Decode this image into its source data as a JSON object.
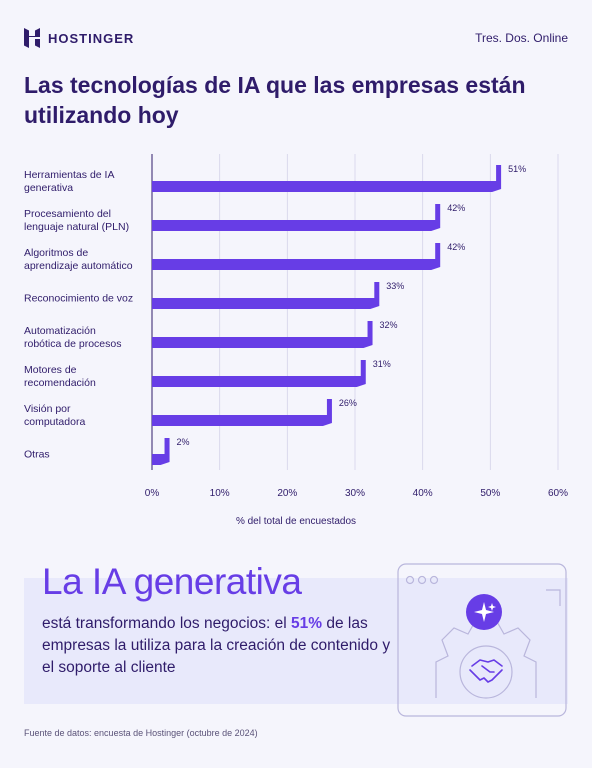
{
  "brand": {
    "name": "HOSTINGER",
    "tagline": "Tres. Dos. Online"
  },
  "title": "Las tecnologías de IA que las empresas están utilizando hoy",
  "chart_data": {
    "type": "bar",
    "orientation": "horizontal",
    "categories": [
      [
        "Herramientas de IA",
        "generativa"
      ],
      [
        "Procesamiento del",
        "lenguaje natural (PLN)"
      ],
      [
        "Algoritmos de",
        "aprendizaje automático"
      ],
      [
        "Reconocimiento de voz"
      ],
      [
        "Automatización",
        "robótica de procesos"
      ],
      [
        "Motores de",
        "recomendación"
      ],
      [
        "Visión por",
        "computadora"
      ],
      [
        "Otras"
      ]
    ],
    "values": [
      51,
      42,
      42,
      33,
      32,
      31,
      26,
      2
    ],
    "value_labels": [
      "51%",
      "42%",
      "42%",
      "33%",
      "32%",
      "31%",
      "26%",
      "2%"
    ],
    "xlim": [
      0,
      60
    ],
    "xticks": [
      "0%",
      "10%",
      "20%",
      "30%",
      "40%",
      "50%",
      "60%"
    ],
    "xlabel": "% del total de encuestados",
    "grid": true,
    "bar_color": "#673de6"
  },
  "callout": {
    "headline": "La IA generativa",
    "text_before": "está transformando los negocios: el ",
    "highlight": "51%",
    "text_after": " de las empresas la utiliza para la creación de contenido y el soporte al cliente"
  },
  "source": "Fuente de datos: encuesta de Hostinger (octubre de 2024)",
  "colors": {
    "accent": "#673de6",
    "text": "#2f1c6a",
    "background": "#f5f5fc",
    "callout_bg": "#e8e9fb"
  },
  "icons": [
    "hostinger-logo-icon",
    "sparkles-icon",
    "handshake-icon",
    "gear-icon"
  ]
}
